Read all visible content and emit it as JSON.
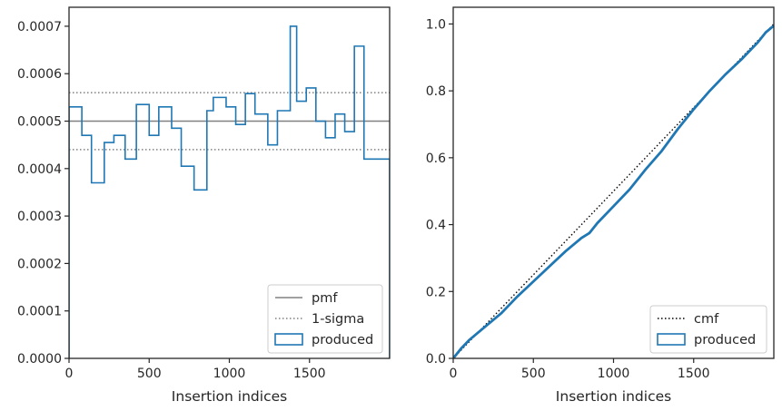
{
  "chart_data": [
    {
      "type": "histogram-step",
      "xlabel": "Insertion indices",
      "ylabel": "",
      "xlim": [
        0,
        2000
      ],
      "ylim": [
        0,
        0.00074
      ],
      "xticks": [
        0,
        500,
        1000,
        1500
      ],
      "xtick_labels": [
        "0",
        "500",
        "1000",
        "1500"
      ],
      "yticks": [
        0,
        0.0001,
        0.0002,
        0.0003,
        0.0004,
        0.0005,
        0.0006,
        0.0007
      ],
      "ytick_labels": [
        "0.0000",
        "0.0001",
        "0.0002",
        "0.0003",
        "0.0004",
        "0.0005",
        "0.0006",
        "0.0007"
      ],
      "reference_lines": [
        {
          "name": "pmf",
          "y": 0.0005,
          "style": "solid",
          "color": "#808080"
        },
        {
          "name": "1-sigma",
          "y": 0.00056,
          "style": "dotted",
          "color": "#808080"
        },
        {
          "name": "1-sigma",
          "y": 0.00044,
          "style": "dotted",
          "color": "#808080"
        }
      ],
      "series": [
        {
          "name": "produced",
          "color": "#1f77b4",
          "bin_edges": [
            0,
            80,
            140,
            220,
            280,
            350,
            420,
            500,
            560,
            640,
            700,
            780,
            820,
            860,
            900,
            980,
            1040,
            1100,
            1160,
            1240,
            1300,
            1380,
            1420,
            1480,
            1540,
            1600,
            1660,
            1720,
            1780,
            1840,
            1920,
            2000
          ],
          "values": [
            0.00053,
            0.00047,
            0.00037,
            0.000455,
            0.00047,
            0.00042,
            0.000535,
            0.00047,
            0.00053,
            0.000485,
            0.000405,
            0.000355,
            0.000355,
            0.000522,
            0.00055,
            0.00053,
            0.000493,
            0.000558,
            0.000515,
            0.00045,
            0.000522,
            0.0007,
            0.000542,
            0.00057,
            0.0005,
            0.000465,
            0.000515,
            0.000478,
            0.000658,
            0.00042,
            0.00042
          ]
        }
      ],
      "legend": {
        "placement": "lower-right",
        "entries": [
          "pmf",
          "1-sigma",
          "produced"
        ]
      }
    },
    {
      "type": "line",
      "xlabel": "Insertion indices",
      "ylabel": "",
      "xlim": [
        0,
        2000
      ],
      "ylim": [
        0,
        1.05
      ],
      "xticks": [
        0,
        500,
        1000,
        1500
      ],
      "xtick_labels": [
        "0",
        "500",
        "1000",
        "1500"
      ],
      "yticks": [
        0,
        0.2,
        0.4,
        0.6,
        0.8,
        1.0
      ],
      "ytick_labels": [
        "0.0",
        "0.2",
        "0.4",
        "0.6",
        "0.8",
        "1.0"
      ],
      "series": [
        {
          "name": "cmf",
          "style": "dotted",
          "color": "#000000",
          "x": [
            0,
            2000
          ],
          "y": [
            0,
            1.0
          ]
        },
        {
          "name": "produced",
          "color": "#1f77b4",
          "x": [
            0,
            50,
            100,
            200,
            300,
            400,
            500,
            600,
            700,
            800,
            850,
            900,
            1000,
            1100,
            1200,
            1300,
            1400,
            1500,
            1600,
            1700,
            1800,
            1900,
            1950,
            2000
          ],
          "y": [
            0,
            0.03,
            0.055,
            0.095,
            0.135,
            0.185,
            0.23,
            0.275,
            0.32,
            0.36,
            0.375,
            0.405,
            0.455,
            0.505,
            0.565,
            0.62,
            0.685,
            0.745,
            0.8,
            0.85,
            0.895,
            0.945,
            0.975,
            0.995
          ]
        }
      ],
      "legend": {
        "placement": "lower-right",
        "entries": [
          "cmf",
          "produced"
        ]
      }
    }
  ]
}
